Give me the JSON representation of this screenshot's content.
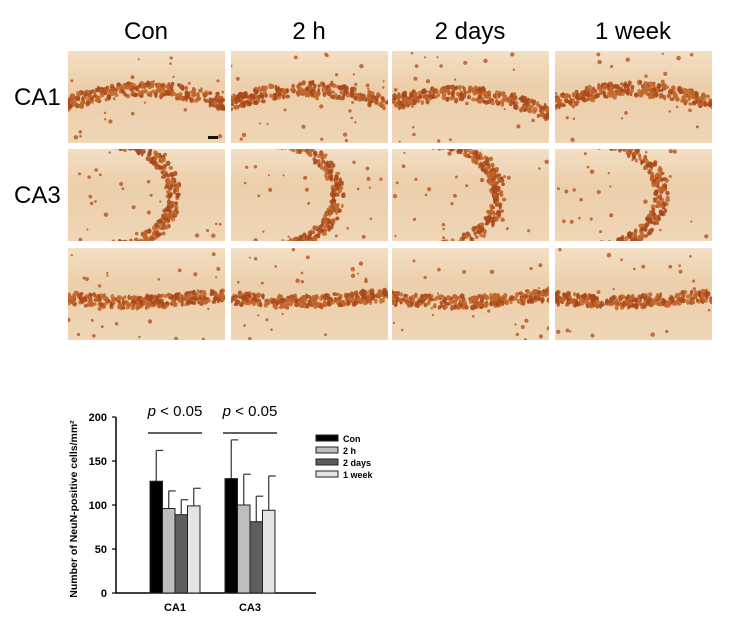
{
  "figure": {
    "column_headers": [
      "Con",
      "2 h",
      "2 days",
      "1 week"
    ],
    "row_labels": [
      "CA1",
      "CA3",
      ""
    ],
    "panels_description": "NeuN immunohistochemistry micrographs of hippocampal subregions (brown DAB staining of pyramidal/granule cell layers)",
    "stain_colors": {
      "background": "#efd6b6",
      "cells": "#b5531c",
      "dark_cells": "#9a3d12"
    }
  },
  "chart_data": {
    "type": "bar",
    "title": "",
    "xlabel": "",
    "ylabel": "Number of NeuN-positive cells/mm²",
    "ylim": [
      0,
      200
    ],
    "yticks": [
      0,
      50,
      100,
      150,
      200
    ],
    "categories": [
      "CA1",
      "CA3"
    ],
    "series": [
      {
        "name": "Con",
        "color": "#000000",
        "values": [
          127,
          130
        ],
        "error_upper": [
          162,
          174
        ]
      },
      {
        "name": "2 h",
        "color": "#bdbdbd",
        "values": [
          96,
          100
        ],
        "error_upper": [
          116,
          135
        ]
      },
      {
        "name": "2 days",
        "color": "#5e5e5e",
        "values": [
          89,
          81
        ],
        "error_upper": [
          106,
          110
        ]
      },
      {
        "name": "1 week",
        "color": "#e4e4e4",
        "values": [
          99,
          94
        ],
        "error_upper": [
          119,
          133
        ]
      }
    ],
    "annotations": [
      {
        "text_italic": "p",
        "text": " < 0.05",
        "over": "CA1"
      },
      {
        "text_italic": "p",
        "text": " < 0.05",
        "over": "CA3"
      }
    ],
    "legend": {
      "position": "right",
      "entries": [
        "Con",
        "2 h",
        "2 days",
        "1 week"
      ]
    },
    "grid": false
  }
}
